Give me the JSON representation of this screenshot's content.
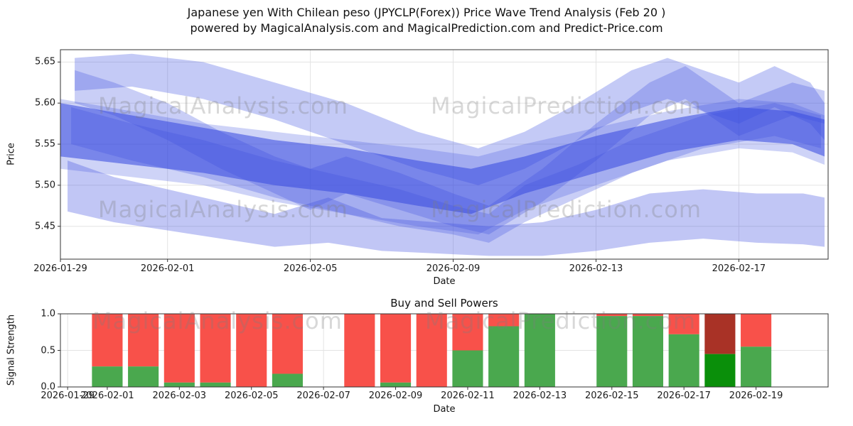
{
  "header": {
    "title_line1": "Japanese yen With Chilean peso (JPYCLP(Forex)) Price Wave Trend Analysis (Feb 20 )",
    "title_line2": "powered by MagicalAnalysis.com and MagicalPrediction.com and Predict-Price.com"
  },
  "watermarks": {
    "analysis": "MagicalAnalysis.com",
    "prediction": "MagicalPrediction.com"
  },
  "chart_data": [
    {
      "type": "area",
      "title": "Price Wave Trend Analysis",
      "ylabel": "Price",
      "xlabel": "Date",
      "ylim": [
        5.41,
        5.665
      ],
      "xlim_days": [
        0,
        21.5
      ],
      "grid": true,
      "grid_color": "#e3e3e3",
      "band_color": "#3d4ee0",
      "yticks": [
        {
          "label": "5.65",
          "value": 5.65
        },
        {
          "label": "5.60",
          "value": 5.6
        },
        {
          "label": "5.55",
          "value": 5.55
        },
        {
          "label": "5.50",
          "value": 5.5
        },
        {
          "label": "5.45",
          "value": 5.45
        }
      ],
      "xticks": [
        {
          "label": "2026-01-29",
          "day": 0
        },
        {
          "label": "2026-02-01",
          "day": 3
        },
        {
          "label": "2026-02-05",
          "day": 7
        },
        {
          "label": "2026-02-09",
          "day": 11
        },
        {
          "label": "2026-02-13",
          "day": 15
        },
        {
          "label": "2026-02-17",
          "day": 19
        }
      ],
      "bands": [
        {
          "name": "upper-wave",
          "opacity": 0.3,
          "days": [
            0.4,
            2,
            4,
            6,
            8,
            10,
            11.7,
            13,
            14.5,
            16,
            17,
            18,
            19,
            20,
            21,
            21.4
          ],
          "upper": [
            5.655,
            5.66,
            5.65,
            5.625,
            5.6,
            5.565,
            5.545,
            5.565,
            5.6,
            5.64,
            5.655,
            5.64,
            5.625,
            5.645,
            5.625,
            5.6
          ],
          "lower": [
            5.615,
            5.62,
            5.605,
            5.58,
            5.55,
            5.52,
            5.5,
            5.52,
            5.555,
            5.59,
            5.605,
            5.59,
            5.575,
            5.595,
            5.575,
            5.555
          ]
        },
        {
          "name": "descending-wave",
          "opacity": 0.28,
          "days": [
            0.4,
            1.5,
            3,
            4.5,
            6,
            7,
            8,
            9.5,
            11,
            12,
            13.5,
            15,
            16.5,
            17.5,
            19,
            20.5,
            21.4
          ],
          "upper": [
            5.64,
            5.625,
            5.6,
            5.565,
            5.535,
            5.52,
            5.535,
            5.515,
            5.49,
            5.475,
            5.52,
            5.575,
            5.625,
            5.645,
            5.6,
            5.625,
            5.615
          ],
          "lower": [
            5.6,
            5.585,
            5.555,
            5.52,
            5.49,
            5.47,
            5.49,
            5.47,
            5.45,
            5.44,
            5.48,
            5.53,
            5.585,
            5.605,
            5.56,
            5.585,
            5.575
          ]
        },
        {
          "name": "core-wave",
          "opacity": 0.55,
          "color": "#3243e0",
          "days": [
            0,
            2,
            4,
            6,
            8,
            10,
            11.5,
            13,
            15,
            17,
            19,
            20.5,
            21.4
          ],
          "upper": [
            5.6,
            5.585,
            5.57,
            5.555,
            5.545,
            5.53,
            5.52,
            5.535,
            5.56,
            5.58,
            5.595,
            5.59,
            5.58
          ],
          "lower": [
            5.535,
            5.525,
            5.515,
            5.5,
            5.49,
            5.475,
            5.465,
            5.49,
            5.515,
            5.54,
            5.555,
            5.55,
            5.535
          ]
        },
        {
          "name": "core-halo",
          "opacity": 0.25,
          "days": [
            0,
            2,
            4,
            6,
            8,
            10,
            11.7,
            13,
            15,
            17,
            19,
            20.5,
            21.4
          ],
          "upper": [
            5.605,
            5.59,
            5.575,
            5.565,
            5.555,
            5.545,
            5.535,
            5.55,
            5.57,
            5.59,
            5.605,
            5.6,
            5.585
          ],
          "lower": [
            5.52,
            5.51,
            5.5,
            5.48,
            5.465,
            5.45,
            5.44,
            5.47,
            5.5,
            5.53,
            5.545,
            5.54,
            5.525
          ]
        },
        {
          "name": "lower-wave",
          "opacity": 0.32,
          "days": [
            0.2,
            1.5,
            3,
            4.5,
            6,
            7.5,
            9,
            10.5,
            12,
            13.5,
            15,
            16.5,
            18,
            19.5,
            20.8,
            21.4
          ],
          "upper": [
            5.53,
            5.51,
            5.495,
            5.48,
            5.465,
            5.485,
            5.46,
            5.455,
            5.45,
            5.455,
            5.47,
            5.49,
            5.495,
            5.49,
            5.49,
            5.485
          ],
          "lower": [
            5.468,
            5.455,
            5.445,
            5.435,
            5.425,
            5.43,
            5.42,
            5.417,
            5.414,
            5.414,
            5.42,
            5.43,
            5.435,
            5.43,
            5.428,
            5.425
          ]
        },
        {
          "name": "mid-wave",
          "opacity": 0.28,
          "days": [
            0.3,
            2,
            4,
            6,
            8,
            9.5,
            11,
            12,
            13,
            14.5,
            16,
            18,
            20,
            21.3
          ],
          "upper": [
            5.595,
            5.575,
            5.555,
            5.53,
            5.51,
            5.495,
            5.475,
            5.465,
            5.5,
            5.525,
            5.555,
            5.585,
            5.6,
            5.585
          ],
          "lower": [
            5.55,
            5.53,
            5.51,
            5.485,
            5.465,
            5.45,
            5.44,
            5.43,
            5.455,
            5.485,
            5.515,
            5.545,
            5.56,
            5.545
          ]
        }
      ]
    },
    {
      "type": "bar",
      "title": "Buy and Sell Powers",
      "ylabel": "Signal Strength",
      "xlabel": "Date",
      "ylim": [
        0,
        1
      ],
      "xlim_days": [
        1.7,
        23
      ],
      "bar_width_days": 0.85,
      "grid_color": "#e3e3e3",
      "colors": {
        "buy": "#4aa84e",
        "sell": "#f8514a",
        "buy_dark": "#0a8f0a",
        "sell_dark": "#a93226"
      },
      "yticks": [
        {
          "label": "1.0",
          "value": 1.0
        },
        {
          "label": "0.5",
          "value": 0.5
        },
        {
          "label": "0.0",
          "value": 0.0
        }
      ],
      "xticks": [
        {
          "label": "2026-01-29",
          "day": 1.9
        },
        {
          "label": "2026-02-01",
          "day": 3
        },
        {
          "label": "2026-02-03",
          "day": 5
        },
        {
          "label": "2026-02-05",
          "day": 7
        },
        {
          "label": "2026-02-07",
          "day": 9
        },
        {
          "label": "2026-02-09",
          "day": 11
        },
        {
          "label": "2026-02-11",
          "day": 13
        },
        {
          "label": "2026-02-13",
          "day": 15
        },
        {
          "label": "2026-02-15",
          "day": 17
        },
        {
          "label": "2026-02-17",
          "day": 19
        },
        {
          "label": "2026-02-19",
          "day": 21
        }
      ],
      "bars": [
        {
          "date": "2026-02-01",
          "day": 3,
          "buy": 0.28,
          "sell": 0.72
        },
        {
          "date": "2026-02-02",
          "day": 4,
          "buy": 0.28,
          "sell": 0.72
        },
        {
          "date": "2026-02-03",
          "day": 5,
          "buy": 0.06,
          "sell": 0.94
        },
        {
          "date": "2026-02-04",
          "day": 6,
          "buy": 0.06,
          "sell": 0.94
        },
        {
          "date": "2026-02-05",
          "day": 7,
          "buy": 0.0,
          "sell": 1.0
        },
        {
          "date": "2026-02-06",
          "day": 8,
          "buy": 0.18,
          "sell": 0.82
        },
        {
          "date": "2026-02-08",
          "day": 10,
          "buy": 0.0,
          "sell": 1.0
        },
        {
          "date": "2026-02-09",
          "day": 11,
          "buy": 0.06,
          "sell": 0.94
        },
        {
          "date": "2026-02-10",
          "day": 12,
          "buy": 0.0,
          "sell": 1.0
        },
        {
          "date": "2026-02-11",
          "day": 13,
          "buy": 0.5,
          "sell": 0.5
        },
        {
          "date": "2026-02-12",
          "day": 14,
          "buy": 0.83,
          "sell": 0.17
        },
        {
          "date": "2026-02-13",
          "day": 15,
          "buy": 1.0,
          "sell": 0.0
        },
        {
          "date": "2026-02-15",
          "day": 17,
          "buy": 0.97,
          "sell": 0.03
        },
        {
          "date": "2026-02-16",
          "day": 18,
          "buy": 0.97,
          "sell": 0.03
        },
        {
          "date": "2026-02-17",
          "day": 19,
          "buy": 0.72,
          "sell": 0.28
        },
        {
          "date": "2026-02-18",
          "day": 20,
          "buy": 0.45,
          "sell": 0.55,
          "dark": true
        },
        {
          "date": "2026-02-19",
          "day": 21,
          "buy": 0.55,
          "sell": 0.45
        }
      ]
    }
  ]
}
